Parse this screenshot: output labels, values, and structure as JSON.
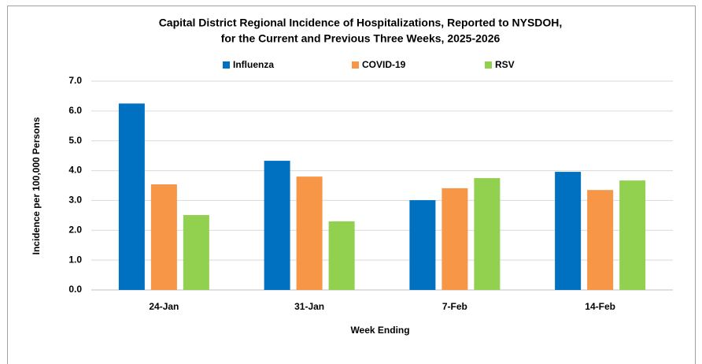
{
  "chart_data": {
    "type": "bar",
    "title": [
      "Capital District Regional Incidence of Hospitalizations, Reported to NYSDOH,",
      "for the Current and Previous Three Weeks, 2025-2026"
    ],
    "x_label": "Week Ending",
    "y_label": "Incidence per 100,000 Persons",
    "categories": [
      "24-Jan",
      "31-Jan",
      "7-Feb",
      "14-Feb"
    ],
    "series": [
      {
        "name": "Influenza",
        "color": "#0070c0",
        "values": [
          6.25,
          4.33,
          3.01,
          3.96
        ]
      },
      {
        "name": "COVID-19",
        "color": "#f79646",
        "values": [
          3.54,
          3.8,
          3.41,
          3.35
        ]
      },
      {
        "name": "RSV",
        "color": "#92d050",
        "values": [
          2.51,
          2.3,
          3.75,
          3.67
        ]
      }
    ],
    "ylim": [
      0,
      7
    ],
    "yticks": [
      {
        "value": 0,
        "label": "0.0"
      },
      {
        "value": 1,
        "label": "1.0"
      },
      {
        "value": 2,
        "label": "2.0"
      },
      {
        "value": 3,
        "label": "3.0"
      },
      {
        "value": 4,
        "label": "4.0"
      },
      {
        "value": 5,
        "label": "5.0"
      },
      {
        "value": 6,
        "label": "6.0"
      },
      {
        "value": 7,
        "label": "7.0"
      }
    ],
    "grid": true,
    "legend": "top"
  }
}
